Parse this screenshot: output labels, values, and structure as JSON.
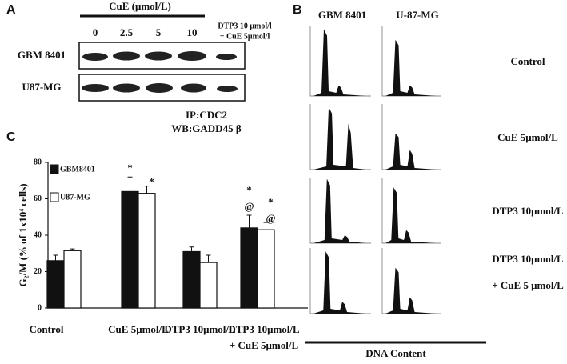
{
  "panel_a": {
    "label": "A",
    "treatment_title": "CuE (μmol/L)",
    "doses": [
      "0",
      "2.5",
      "5",
      "10"
    ],
    "combo": [
      "DTP3 10 μmol/l",
      "+ CuE 5μmol/l"
    ],
    "rows": [
      "GBM 8401",
      "U87-MG"
    ],
    "ip": "IP:CDC2",
    "wb": "WB:GADD45 β"
  },
  "panel_b": {
    "label": "B",
    "columns": [
      "GBM 8401",
      "U-87-MG"
    ],
    "rows": [
      [
        "Control"
      ],
      [
        "CuE 5μmol/L"
      ],
      [
        "DTP3 10μmol/L"
      ],
      [
        "DTP3 10μmol/L",
        "+ CuE 5 μmol/L"
      ]
    ],
    "xlabel": "DNA Content"
  },
  "chart_data": {
    "type": "bar",
    "label": "C",
    "categories": [
      [
        "Control"
      ],
      [
        "CuE 5μmol/L"
      ],
      [
        "DTP3 10μmol/L"
      ],
      [
        "DTP3 10μmol/L",
        "+ CuE 5μmol/L"
      ]
    ],
    "series": [
      {
        "name": "GBM8401",
        "color": "#111111",
        "values": [
          26,
          64,
          31,
          44
        ],
        "errors": [
          3,
          8,
          2.5,
          7
        ],
        "annotations": [
          null,
          [
            "*"
          ],
          null,
          [
            "*",
            "@"
          ]
        ]
      },
      {
        "name": "U87-MG",
        "color": "#ffffff",
        "values": [
          31.5,
          63,
          25,
          43
        ],
        "errors": [
          1,
          4,
          4,
          4
        ],
        "annotations": [
          null,
          [
            "*"
          ],
          null,
          [
            "*",
            "@"
          ]
        ]
      }
    ],
    "ylabel": "G₂/M (% of 1x10⁴ cells)",
    "ylim": [
      0,
      80
    ],
    "yticks": [
      0,
      20,
      40,
      60,
      80
    ]
  }
}
